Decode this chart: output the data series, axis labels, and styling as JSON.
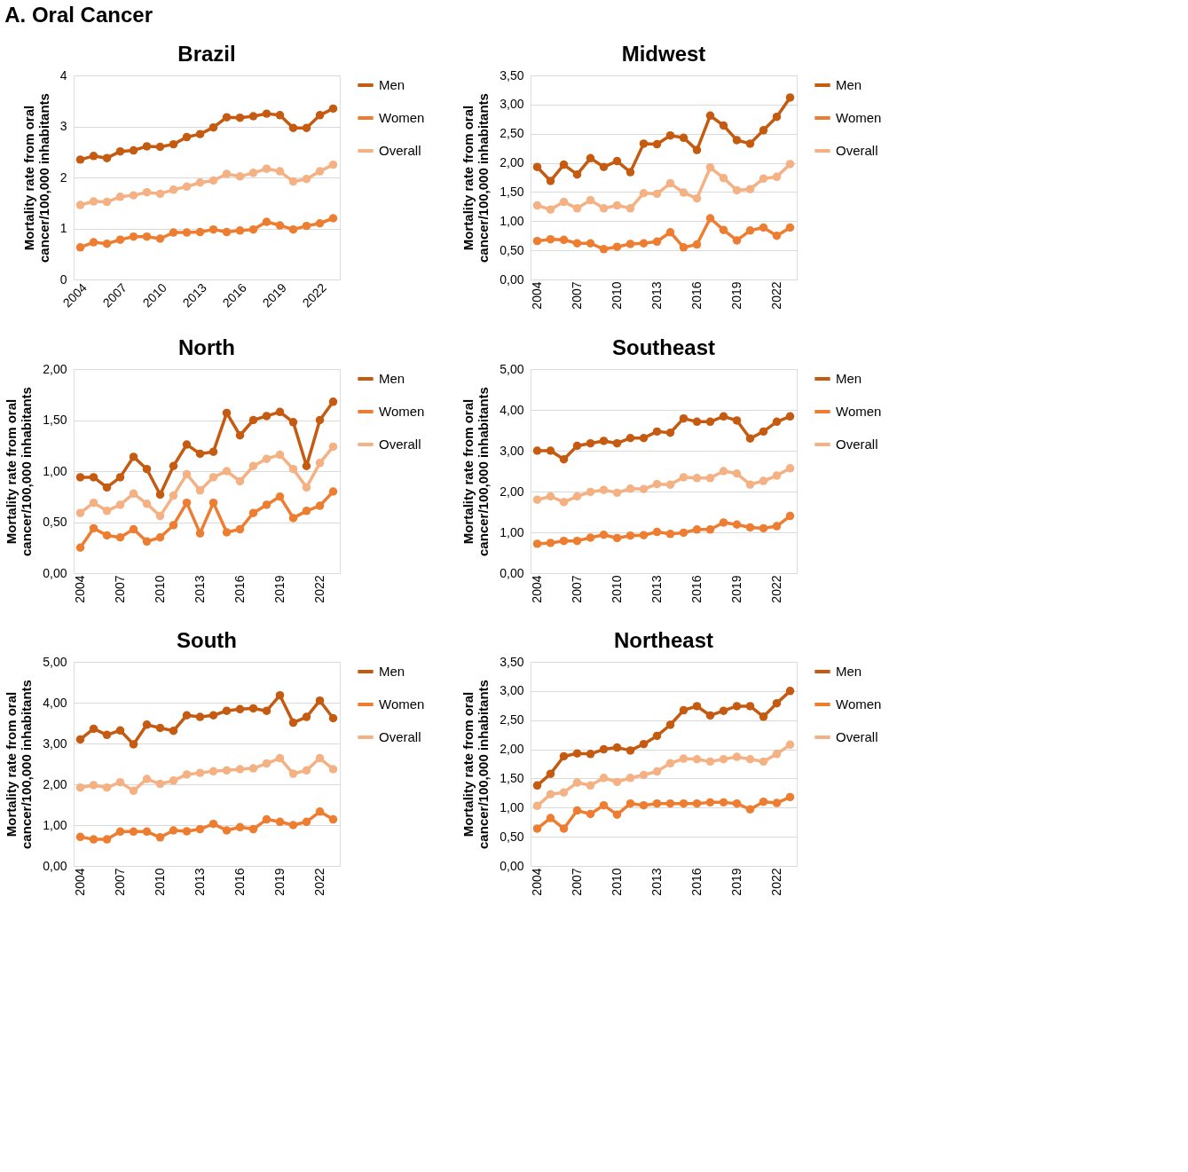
{
  "chart_data": [
    {
      "type": "line",
      "title": "Brazil",
      "annotations": [
        "A.  Oral Cancer"
      ],
      "ylabel": "Mortality rate from oral cancer/100,000 inhabitants",
      "x": [
        2004,
        2005,
        2006,
        2007,
        2008,
        2009,
        2010,
        2011,
        2012,
        2013,
        2014,
        2015,
        2016,
        2017,
        2018,
        2019,
        2020,
        2021,
        2022,
        2023
      ],
      "xlim": [
        2003.5,
        2023.5
      ],
      "xticks": [
        2004,
        2007,
        2010,
        2013,
        2016,
        2019,
        2022
      ],
      "ylim": [
        0,
        4
      ],
      "yticks": [
        0,
        1,
        2,
        3,
        4
      ],
      "grid": "y",
      "legend": "right",
      "marker": "circle",
      "line_style": "solid",
      "series": [
        {
          "name": "Men",
          "color": "#c55a11",
          "values": [
            2.35,
            2.42,
            2.38,
            2.51,
            2.53,
            2.61,
            2.6,
            2.65,
            2.79,
            2.85,
            2.98,
            3.18,
            3.17,
            3.2,
            3.25,
            3.22,
            2.97,
            2.97,
            3.22,
            3.35
          ]
        },
        {
          "name": "Women",
          "color": "#ed7d31",
          "values": [
            0.63,
            0.73,
            0.7,
            0.78,
            0.84,
            0.84,
            0.8,
            0.92,
            0.92,
            0.93,
            0.98,
            0.93,
            0.96,
            0.98,
            1.13,
            1.06,
            0.98,
            1.05,
            1.1,
            1.2
          ]
        },
        {
          "name": "Overall",
          "color": "#f4b183",
          "values": [
            1.46,
            1.53,
            1.52,
            1.62,
            1.65,
            1.71,
            1.68,
            1.76,
            1.82,
            1.9,
            1.94,
            2.07,
            2.02,
            2.09,
            2.17,
            2.12,
            1.92,
            1.97,
            2.12,
            2.25
          ]
        }
      ]
    },
    {
      "type": "line",
      "title": "Midwest",
      "ylabel": "Mortality rate from oral cancer/100,000 inhabitants",
      "x": [
        2004,
        2005,
        2006,
        2007,
        2008,
        2009,
        2010,
        2011,
        2012,
        2013,
        2014,
        2015,
        2016,
        2017,
        2018,
        2019,
        2020,
        2021,
        2022,
        2023
      ],
      "xlim": [
        2003.5,
        2023.5
      ],
      "xticks": [
        2004,
        2007,
        2010,
        2013,
        2016,
        2019,
        2022
      ],
      "ylim": [
        0,
        3.5
      ],
      "yticks": [
        {
          "value": 0,
          "label": "0,00"
        },
        {
          "value": 0.5,
          "label": "0,50"
        },
        {
          "value": 1,
          "label": "1,00"
        },
        {
          "value": 1.5,
          "label": "1,50"
        },
        {
          "value": 2,
          "label": "2,00"
        },
        {
          "value": 2.5,
          "label": "2,50"
        },
        {
          "value": 3,
          "label": "3,00"
        },
        {
          "value": 3.5,
          "label": "3,50"
        }
      ],
      "grid": "y",
      "legend": "right",
      "marker": "circle",
      "line_style": "solid",
      "series": [
        {
          "name": "Men",
          "color": "#c55a11",
          "values": [
            1.93,
            1.69,
            1.97,
            1.8,
            2.08,
            1.93,
            2.03,
            1.84,
            2.33,
            2.32,
            2.47,
            2.43,
            2.22,
            2.81,
            2.64,
            2.39,
            2.33,
            2.56,
            2.79,
            3.12
          ]
        },
        {
          "name": "Women",
          "color": "#ed7d31",
          "values": [
            0.66,
            0.69,
            0.68,
            0.62,
            0.62,
            0.52,
            0.56,
            0.61,
            0.62,
            0.65,
            0.81,
            0.55,
            0.6,
            1.05,
            0.85,
            0.67,
            0.84,
            0.89,
            0.75,
            0.89
          ]
        },
        {
          "name": "Overall",
          "color": "#f4b183",
          "values": [
            1.27,
            1.2,
            1.33,
            1.22,
            1.36,
            1.22,
            1.27,
            1.22,
            1.48,
            1.47,
            1.65,
            1.49,
            1.39,
            1.92,
            1.74,
            1.53,
            1.55,
            1.73,
            1.76,
            1.98
          ]
        }
      ]
    },
    {
      "type": "line",
      "title": "North",
      "ylabel": "Mortality rate from oral cancer/100,000 inhabitants",
      "x": [
        2004,
        2005,
        2006,
        2007,
        2008,
        2009,
        2010,
        2011,
        2012,
        2013,
        2014,
        2015,
        2016,
        2017,
        2018,
        2019,
        2020,
        2021,
        2022,
        2023
      ],
      "xlim": [
        2003.5,
        2023.5
      ],
      "xticks": [
        2004,
        2007,
        2010,
        2013,
        2016,
        2019,
        2022
      ],
      "ylim": [
        0,
        2
      ],
      "yticks": [
        {
          "value": 0,
          "label": "0,00"
        },
        {
          "value": 0.5,
          "label": "0,50"
        },
        {
          "value": 1,
          "label": "1,00"
        },
        {
          "value": 1.5,
          "label": "1,50"
        },
        {
          "value": 2,
          "label": "2,00"
        }
      ],
      "grid": "y",
      "legend": "right",
      "marker": "circle",
      "line_style": "solid",
      "series": [
        {
          "name": "Men",
          "color": "#c55a11",
          "values": [
            0.94,
            0.94,
            0.84,
            0.94,
            1.14,
            1.02,
            0.77,
            1.05,
            1.26,
            1.17,
            1.19,
            1.57,
            1.35,
            1.5,
            1.54,
            1.58,
            1.48,
            1.05,
            1.5,
            1.68
          ]
        },
        {
          "name": "Women",
          "color": "#ed7d31",
          "values": [
            0.25,
            0.44,
            0.37,
            0.35,
            0.43,
            0.31,
            0.35,
            0.47,
            0.69,
            0.39,
            0.69,
            0.4,
            0.43,
            0.59,
            0.67,
            0.75,
            0.54,
            0.61,
            0.66,
            0.8
          ]
        },
        {
          "name": "Overall",
          "color": "#f4b183",
          "values": [
            0.59,
            0.69,
            0.61,
            0.67,
            0.78,
            0.68,
            0.56,
            0.76,
            0.97,
            0.81,
            0.94,
            1.0,
            0.9,
            1.05,
            1.12,
            1.16,
            1.02,
            0.84,
            1.08,
            1.24
          ]
        }
      ]
    },
    {
      "type": "line",
      "title": "Southeast",
      "ylabel": "Mortality rate from oral cancer/100,000 inhabitants",
      "x": [
        2004,
        2005,
        2006,
        2007,
        2008,
        2009,
        2010,
        2011,
        2012,
        2013,
        2014,
        2015,
        2016,
        2017,
        2018,
        2019,
        2020,
        2021,
        2022,
        2023
      ],
      "xlim": [
        2003.5,
        2023.5
      ],
      "xticks": [
        2004,
        2007,
        2010,
        2013,
        2016,
        2019,
        2022
      ],
      "ylim": [
        0,
        5
      ],
      "yticks": [
        {
          "value": 0,
          "label": "0,00"
        },
        {
          "value": 1,
          "label": "1,00"
        },
        {
          "value": 2,
          "label": "2,00"
        },
        {
          "value": 3,
          "label": "3,00"
        },
        {
          "value": 4,
          "label": "4,00"
        },
        {
          "value": 5,
          "label": "5,00"
        }
      ],
      "grid": "y",
      "legend": "right",
      "marker": "circle",
      "line_style": "solid",
      "series": [
        {
          "name": "Men",
          "color": "#c55a11",
          "values": [
            3.0,
            3.0,
            2.79,
            3.12,
            3.18,
            3.24,
            3.18,
            3.31,
            3.31,
            3.47,
            3.44,
            3.79,
            3.71,
            3.71,
            3.84,
            3.74,
            3.3,
            3.47,
            3.71,
            3.84
          ]
        },
        {
          "name": "Women",
          "color": "#ed7d31",
          "values": [
            0.72,
            0.74,
            0.79,
            0.79,
            0.87,
            0.94,
            0.86,
            0.92,
            0.93,
            1.01,
            0.96,
            0.99,
            1.07,
            1.07,
            1.24,
            1.19,
            1.12,
            1.1,
            1.15,
            1.4
          ]
        },
        {
          "name": "Overall",
          "color": "#f4b183",
          "values": [
            1.8,
            1.88,
            1.74,
            1.88,
            1.99,
            2.04,
            1.97,
            2.07,
            2.06,
            2.18,
            2.17,
            2.35,
            2.33,
            2.33,
            2.5,
            2.44,
            2.17,
            2.26,
            2.39,
            2.57
          ]
        }
      ]
    },
    {
      "type": "line",
      "title": "South",
      "ylabel": "Mortality rate from oral cancer/100,000 inhabitants",
      "x": [
        2004,
        2005,
        2006,
        2007,
        2008,
        2009,
        2010,
        2011,
        2012,
        2013,
        2014,
        2015,
        2016,
        2017,
        2018,
        2019,
        2020,
        2021,
        2022,
        2023
      ],
      "xlim": [
        2003.5,
        2023.5
      ],
      "xticks": [
        2004,
        2007,
        2010,
        2013,
        2016,
        2019,
        2022
      ],
      "ylim": [
        0,
        5
      ],
      "yticks": [
        {
          "value": 0,
          "label": "0,00"
        },
        {
          "value": 1,
          "label": "1,00"
        },
        {
          "value": 2,
          "label": "2,00"
        },
        {
          "value": 3,
          "label": "3,00"
        },
        {
          "value": 4,
          "label": "4,00"
        },
        {
          "value": 5,
          "label": "5,00"
        }
      ],
      "grid": "y",
      "legend": "right",
      "marker": "circle",
      "line_style": "solid",
      "series": [
        {
          "name": "Men",
          "color": "#c55a11",
          "values": [
            3.1,
            3.36,
            3.21,
            3.32,
            2.98,
            3.46,
            3.38,
            3.31,
            3.69,
            3.65,
            3.69,
            3.8,
            3.84,
            3.86,
            3.8,
            4.18,
            3.51,
            3.65,
            4.05,
            3.62
          ]
        },
        {
          "name": "Women",
          "color": "#ed7d31",
          "values": [
            0.71,
            0.65,
            0.65,
            0.84,
            0.84,
            0.84,
            0.7,
            0.87,
            0.85,
            0.9,
            1.03,
            0.87,
            0.95,
            0.9,
            1.14,
            1.08,
            1.0,
            1.08,
            1.33,
            1.14
          ]
        },
        {
          "name": "Overall",
          "color": "#f4b183",
          "values": [
            1.92,
            1.98,
            1.92,
            2.05,
            1.84,
            2.13,
            2.01,
            2.09,
            2.24,
            2.28,
            2.32,
            2.34,
            2.37,
            2.39,
            2.51,
            2.64,
            2.26,
            2.34,
            2.64,
            2.37
          ]
        }
      ]
    },
    {
      "type": "line",
      "title": "Northeast",
      "ylabel": "Mortality rate from oral cancer/100,000 inhabitants",
      "x": [
        2004,
        2005,
        2006,
        2007,
        2008,
        2009,
        2010,
        2011,
        2012,
        2013,
        2014,
        2015,
        2016,
        2017,
        2018,
        2019,
        2020,
        2021,
        2022,
        2023
      ],
      "xlim": [
        2003.5,
        2023.5
      ],
      "xticks": [
        2004,
        2007,
        2010,
        2013,
        2016,
        2019,
        2022
      ],
      "ylim": [
        0,
        3.5
      ],
      "yticks": [
        {
          "value": 0,
          "label": "0,00"
        },
        {
          "value": 0.5,
          "label": "0,50"
        },
        {
          "value": 1,
          "label": "1,00"
        },
        {
          "value": 1.5,
          "label": "1,50"
        },
        {
          "value": 2,
          "label": "2,00"
        },
        {
          "value": 2.5,
          "label": "2,50"
        },
        {
          "value": 3,
          "label": "3,00"
        },
        {
          "value": 3.5,
          "label": "3,50"
        }
      ],
      "grid": "y",
      "legend": "right",
      "marker": "circle",
      "line_style": "solid",
      "series": [
        {
          "name": "Men",
          "color": "#c55a11",
          "values": [
            1.38,
            1.58,
            1.88,
            1.93,
            1.92,
            2.0,
            2.03,
            1.98,
            2.09,
            2.23,
            2.42,
            2.67,
            2.74,
            2.58,
            2.66,
            2.74,
            2.74,
            2.56,
            2.79,
            3.0
          ]
        },
        {
          "name": "Women",
          "color": "#ed7d31",
          "values": [
            0.64,
            0.82,
            0.64,
            0.95,
            0.89,
            1.04,
            0.88,
            1.07,
            1.04,
            1.07,
            1.07,
            1.07,
            1.07,
            1.09,
            1.09,
            1.07,
            0.97,
            1.1,
            1.08,
            1.18
          ]
        },
        {
          "name": "Overall",
          "color": "#f4b183",
          "values": [
            1.03,
            1.23,
            1.26,
            1.43,
            1.38,
            1.51,
            1.44,
            1.51,
            1.56,
            1.62,
            1.76,
            1.84,
            1.83,
            1.79,
            1.83,
            1.87,
            1.83,
            1.79,
            1.92,
            2.08
          ]
        }
      ]
    }
  ]
}
